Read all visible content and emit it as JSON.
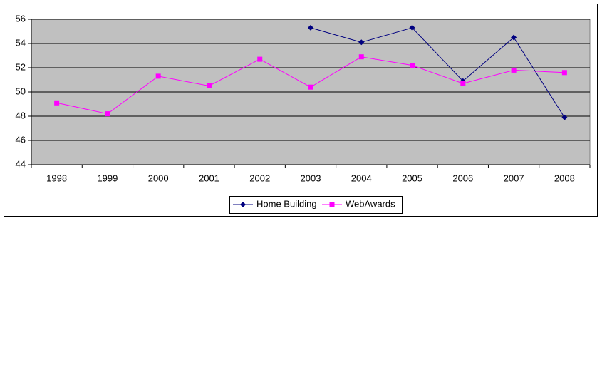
{
  "chart_data": {
    "type": "line",
    "categories": [
      "1998",
      "1999",
      "2000",
      "2001",
      "2002",
      "2003",
      "2004",
      "2005",
      "2006",
      "2007",
      "2008"
    ],
    "series": [
      {
        "name": "Home Building",
        "color": "#000080",
        "marker": "diamond",
        "values": [
          null,
          null,
          null,
          null,
          null,
          55.3,
          54.1,
          55.3,
          50.9,
          54.5,
          47.9
        ]
      },
      {
        "name": "WebAwards",
        "color": "#ff00ff",
        "marker": "square",
        "values": [
          49.1,
          48.2,
          51.3,
          50.5,
          52.7,
          50.4,
          52.9,
          52.2,
          50.7,
          51.8,
          51.6
        ]
      }
    ],
    "ylim": [
      44,
      56
    ],
    "yticks": [
      44,
      46,
      48,
      50,
      52,
      54,
      56
    ],
    "grid": true,
    "legend": "bottom"
  }
}
